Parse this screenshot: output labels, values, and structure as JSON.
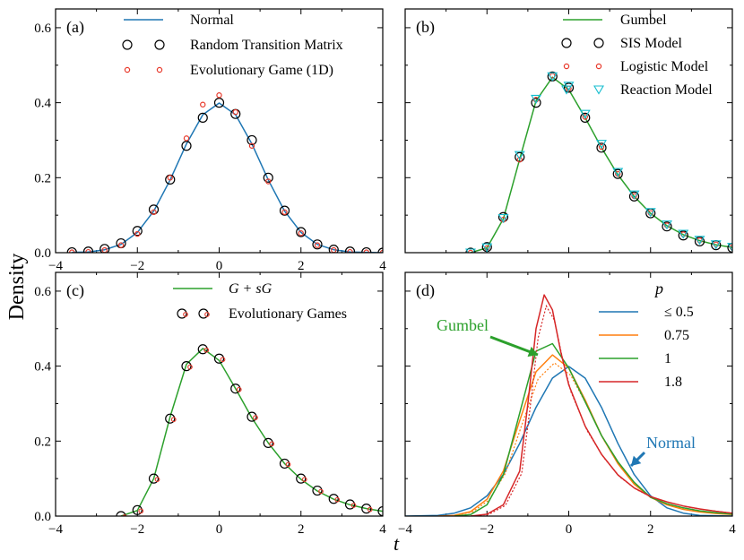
{
  "figure": {
    "shared_ylabel": "Density",
    "shared_xlabel": "t"
  },
  "chart_data": [
    {
      "id": "a",
      "type": "line",
      "panel_label": "(a)",
      "xlim": [
        -4,
        4
      ],
      "ylim": [
        0,
        0.65
      ],
      "xticks": [
        "−4",
        "−2",
        "0",
        "2",
        "4"
      ],
      "yticks": [
        "0.0",
        "0.2",
        "0.4",
        "0.6"
      ],
      "legend_position": "top-right",
      "series": [
        {
          "name": "Normal",
          "style": "line",
          "color": "#1f77b4",
          "x": [
            -3.6,
            -3.2,
            -2.8,
            -2.4,
            -2.0,
            -1.6,
            -1.2,
            -0.8,
            -0.4,
            0.0,
            0.4,
            0.8,
            1.2,
            1.6,
            2.0,
            2.4,
            2.8,
            3.2,
            3.6,
            4.0
          ],
          "y": [
            0.001,
            0.002,
            0.008,
            0.022,
            0.054,
            0.111,
            0.194,
            0.29,
            0.368,
            0.399,
            0.368,
            0.29,
            0.194,
            0.111,
            0.054,
            0.022,
            0.008,
            0.002,
            0.001,
            0.0
          ]
        },
        {
          "name": "Random Transition Matrix",
          "style": "marker-open-circle",
          "color": "#000000",
          "x": [
            -3.6,
            -3.2,
            -2.8,
            -2.4,
            -2.0,
            -1.6,
            -1.2,
            -0.8,
            -0.4,
            0.0,
            0.4,
            0.8,
            1.2,
            1.6,
            2.0,
            2.4,
            2.8,
            3.2,
            3.6,
            4.0
          ],
          "y": [
            0.001,
            0.003,
            0.01,
            0.025,
            0.058,
            0.115,
            0.195,
            0.285,
            0.36,
            0.4,
            0.37,
            0.3,
            0.2,
            0.112,
            0.055,
            0.022,
            0.008,
            0.003,
            0.001,
            0.0
          ]
        },
        {
          "name": "Evolutionary Game (1D)",
          "style": "marker-small-circle",
          "color": "#e8392b",
          "x": [
            -3.6,
            -3.2,
            -2.8,
            -2.4,
            -2.0,
            -1.6,
            -1.2,
            -0.8,
            -0.4,
            0.0,
            0.4,
            0.8,
            1.2,
            1.6,
            2.0,
            2.4,
            2.8,
            3.2,
            3.6,
            4.0
          ],
          "y": [
            0.001,
            0.002,
            0.007,
            0.02,
            0.05,
            0.108,
            0.2,
            0.305,
            0.395,
            0.42,
            0.375,
            0.285,
            0.19,
            0.108,
            0.052,
            0.02,
            0.007,
            0.002,
            0.001,
            0.0
          ]
        }
      ]
    },
    {
      "id": "b",
      "type": "line",
      "panel_label": "(b)",
      "xlim": [
        -4,
        4
      ],
      "ylim": [
        0,
        0.65
      ],
      "xticks": [],
      "yticks": [],
      "legend_position": "top-right",
      "series": [
        {
          "name": "Gumbel",
          "style": "line",
          "color": "#2ca02c",
          "x": [
            -2.4,
            -2.0,
            -1.6,
            -1.2,
            -0.8,
            -0.4,
            0.0,
            0.4,
            0.8,
            1.2,
            1.6,
            2.0,
            2.4,
            2.8,
            3.2,
            3.6,
            4.0
          ],
          "y": [
            0.0,
            0.013,
            0.09,
            0.25,
            0.405,
            0.468,
            0.435,
            0.36,
            0.28,
            0.208,
            0.15,
            0.105,
            0.072,
            0.048,
            0.032,
            0.021,
            0.014
          ]
        },
        {
          "name": "SIS Model",
          "style": "marker-open-circle",
          "color": "#000000",
          "x": [
            -2.4,
            -2.0,
            -1.6,
            -1.2,
            -0.8,
            -0.4,
            0.0,
            0.4,
            0.8,
            1.2,
            1.6,
            2.0,
            2.4,
            2.8,
            3.2,
            3.6,
            4.0
          ],
          "y": [
            0.0,
            0.015,
            0.095,
            0.255,
            0.4,
            0.47,
            0.44,
            0.36,
            0.28,
            0.21,
            0.15,
            0.105,
            0.07,
            0.046,
            0.03,
            0.02,
            0.013
          ]
        },
        {
          "name": "Logistic Model",
          "style": "marker-small-circle",
          "color": "#e8392b",
          "x": [
            -2.4,
            -2.0,
            -1.6,
            -1.2,
            -0.8,
            -0.4,
            0.0,
            0.4,
            0.8,
            1.2,
            1.6,
            2.0,
            2.4,
            2.8,
            3.2,
            3.6,
            4.0
          ],
          "y": [
            0.0,
            0.012,
            0.088,
            0.248,
            0.408,
            0.472,
            0.438,
            0.362,
            0.282,
            0.21,
            0.151,
            0.106,
            0.073,
            0.049,
            0.033,
            0.022,
            0.014
          ]
        },
        {
          "name": "Reaction Model",
          "style": "marker-open-triangle-down",
          "color": "#17becf",
          "x": [
            -2.4,
            -2.0,
            -1.6,
            -1.2,
            -0.8,
            -0.4,
            0.0,
            0.4,
            0.8,
            1.2,
            1.6,
            2.0,
            2.4,
            2.8,
            3.2,
            3.6,
            4.0
          ],
          "y": [
            0.0,
            0.014,
            0.092,
            0.26,
            0.41,
            0.47,
            0.445,
            0.37,
            0.29,
            0.215,
            0.155,
            0.108,
            0.075,
            0.05,
            0.034,
            0.022,
            0.015
          ]
        }
      ]
    },
    {
      "id": "c",
      "type": "line",
      "panel_label": "(c)",
      "xlim": [
        -4,
        4
      ],
      "ylim": [
        0,
        0.65
      ],
      "xticks": [
        "−4",
        "−2",
        "0",
        "2",
        "4"
      ],
      "yticks": [
        "0.0",
        "0.2",
        "0.4",
        "0.6"
      ],
      "legend_position": "top-right",
      "series": [
        {
          "name": "G + sG",
          "style": "line",
          "color": "#2ca02c",
          "x": [
            -2.4,
            -2.0,
            -1.6,
            -1.2,
            -0.8,
            -0.4,
            0.0,
            0.4,
            0.8,
            1.2,
            1.6,
            2.0,
            2.4,
            2.8,
            3.2,
            3.6,
            4.0
          ],
          "y": [
            0.0,
            0.015,
            0.1,
            0.265,
            0.405,
            0.447,
            0.415,
            0.34,
            0.262,
            0.195,
            0.14,
            0.098,
            0.067,
            0.045,
            0.03,
            0.02,
            0.013
          ]
        },
        {
          "name": "Evolutionary Games",
          "style": "marker-circle-pair",
          "color": "#000000",
          "x": [
            -2.4,
            -2.0,
            -1.6,
            -1.2,
            -0.8,
            -0.4,
            0.0,
            0.4,
            0.8,
            1.2,
            1.6,
            2.0,
            2.4,
            2.8,
            3.2,
            3.6,
            4.0
          ],
          "y": [
            0.0,
            0.016,
            0.1,
            0.26,
            0.4,
            0.445,
            0.42,
            0.34,
            0.265,
            0.195,
            0.14,
            0.1,
            0.068,
            0.046,
            0.031,
            0.02,
            0.013
          ]
        }
      ]
    },
    {
      "id": "d",
      "type": "line",
      "panel_label": "(d)",
      "xlim": [
        -4,
        4
      ],
      "ylim": [
        0,
        0.65
      ],
      "xticks": [
        "−4",
        "−2",
        "0",
        "2",
        "4"
      ],
      "yticks": [],
      "legend_position": "top-right",
      "legend_title": "p",
      "annotations": [
        {
          "text": "Gumbel",
          "color": "#2ca02c",
          "arrow_to": [
            -0.65,
            0.42
          ]
        },
        {
          "text": "Normal",
          "color": "#1f77b4",
          "arrow_to": [
            1.45,
            0.2
          ]
        }
      ],
      "series": [
        {
          "name": "≤ 0.5",
          "style": "line",
          "color": "#1f77b4",
          "x": [
            -4.0,
            -3.6,
            -3.2,
            -2.8,
            -2.4,
            -2.0,
            -1.6,
            -1.2,
            -0.8,
            -0.4,
            0.0,
            0.4,
            0.8,
            1.2,
            1.6,
            2.0,
            2.4,
            2.8,
            3.2,
            3.6,
            4.0
          ],
          "y": [
            0.0,
            0.001,
            0.002,
            0.008,
            0.022,
            0.054,
            0.111,
            0.194,
            0.29,
            0.368,
            0.399,
            0.368,
            0.29,
            0.194,
            0.111,
            0.054,
            0.022,
            0.008,
            0.002,
            0.001,
            0.0
          ]
        },
        {
          "name": "0.75",
          "style": "line",
          "color": "#ff7f0e",
          "x": [
            -3.2,
            -2.8,
            -2.4,
            -2.0,
            -1.6,
            -1.2,
            -0.8,
            -0.4,
            0.0,
            0.4,
            0.8,
            1.2,
            1.6,
            2.0,
            2.4,
            2.8,
            3.2,
            3.6,
            4.0
          ],
          "y": [
            0.0,
            0.002,
            0.012,
            0.045,
            0.12,
            0.255,
            0.385,
            0.43,
            0.395,
            0.31,
            0.215,
            0.14,
            0.085,
            0.05,
            0.03,
            0.018,
            0.011,
            0.007,
            0.004
          ]
        },
        {
          "name": "1",
          "style": "line",
          "color": "#2ca02c",
          "x": [
            -2.8,
            -2.4,
            -2.0,
            -1.6,
            -1.2,
            -0.8,
            -0.4,
            0.0,
            0.4,
            0.8,
            1.2,
            1.6,
            2.0,
            2.4,
            2.8,
            3.2,
            3.6,
            4.0
          ],
          "y": [
            0.0,
            0.004,
            0.03,
            0.11,
            0.275,
            0.44,
            0.46,
            0.395,
            0.305,
            0.215,
            0.145,
            0.09,
            0.05,
            0.033,
            0.022,
            0.014,
            0.009,
            0.005
          ]
        },
        {
          "name": "1.8",
          "style": "line",
          "color": "#d62728",
          "x": [
            -2.4,
            -2.0,
            -1.6,
            -1.2,
            -1.0,
            -0.8,
            -0.6,
            -0.4,
            -0.2,
            0.0,
            0.4,
            0.8,
            1.2,
            1.6,
            2.0,
            2.4,
            2.8,
            3.2,
            3.6,
            4.0
          ],
          "y": [
            0.0,
            0.005,
            0.03,
            0.12,
            0.3,
            0.5,
            0.59,
            0.55,
            0.44,
            0.35,
            0.24,
            0.165,
            0.11,
            0.075,
            0.052,
            0.038,
            0.027,
            0.019,
            0.013,
            0.008
          ]
        }
      ]
    }
  ]
}
